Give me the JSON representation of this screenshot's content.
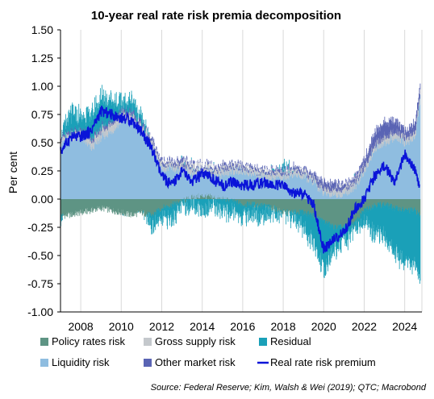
{
  "chart_data": {
    "type": "area",
    "title": "10-year real rate risk premia decomposition",
    "ylabel": "Per cent",
    "xlabel": "",
    "ylim": [
      -1.0,
      1.5
    ],
    "xlim": [
      2007.0,
      2024.85
    ],
    "yticks": [
      "-1.00",
      "-0.75",
      "-0.50",
      "-0.25",
      "0.00",
      "0.25",
      "0.50",
      "0.75",
      "1.00",
      "1.25",
      "1.50"
    ],
    "xticks": [
      "2008",
      "2010",
      "2012",
      "2014",
      "2016",
      "2018",
      "2020",
      "2022",
      "2024"
    ],
    "grid": "vertical",
    "legend_position": "bottom",
    "source": "Source: Federal Reserve; Kim, Walsh & Wei (2019); QTC; Macrobond",
    "colors": {
      "policy": "#5e9484",
      "gross_supply": "#c4c8cc",
      "residual": "#1aa0b8",
      "liquidity": "#8fbde0",
      "other_market": "#5a64b4",
      "real_rate": "#0a14d8"
    },
    "x": [
      2007.0,
      2007.5,
      2008.0,
      2008.5,
      2009.0,
      2009.5,
      2010.0,
      2010.5,
      2011.0,
      2011.5,
      2012.0,
      2012.5,
      2013.0,
      2013.5,
      2014.0,
      2014.5,
      2015.0,
      2015.5,
      2016.0,
      2016.5,
      2017.0,
      2017.5,
      2018.0,
      2018.5,
      2019.0,
      2019.5,
      2020.0,
      2020.5,
      2021.0,
      2021.5,
      2022.0,
      2022.5,
      2023.0,
      2023.5,
      2024.0,
      2024.5,
      2024.75
    ],
    "series": [
      {
        "name": "Policy rates risk",
        "values": [
          -0.15,
          -0.14,
          -0.12,
          -0.1,
          -0.08,
          -0.1,
          -0.12,
          -0.14,
          -0.12,
          -0.15,
          -0.08,
          -0.05,
          -0.02,
          0.02,
          0.03,
          0.02,
          0.0,
          -0.02,
          -0.05,
          -0.05,
          -0.06,
          -0.08,
          -0.12,
          -0.12,
          -0.12,
          -0.15,
          -0.2,
          -0.25,
          -0.25,
          -0.22,
          -0.1,
          -0.05,
          -0.05,
          -0.08,
          -0.1,
          -0.1,
          -0.15
        ]
      },
      {
        "name": "Gross supply risk",
        "values": [
          0.04,
          0.04,
          0.05,
          0.06,
          0.07,
          0.07,
          0.06,
          0.05,
          0.05,
          0.05,
          0.04,
          0.04,
          0.05,
          0.05,
          0.04,
          0.04,
          0.04,
          0.04,
          0.03,
          0.04,
          0.04,
          0.04,
          0.04,
          0.04,
          0.04,
          0.03,
          0.04,
          0.05,
          0.05,
          0.05,
          0.04,
          0.04,
          0.05,
          0.05,
          0.05,
          0.05,
          0.05
        ]
      },
      {
        "name": "Residual",
        "values": [
          0.0,
          0.15,
          0.1,
          0.2,
          0.25,
          0.2,
          0.05,
          0.1,
          0.05,
          -0.1,
          -0.1,
          -0.12,
          -0.05,
          -0.05,
          -0.1,
          -0.05,
          -0.12,
          -0.1,
          -0.1,
          -0.08,
          -0.1,
          -0.05,
          0.0,
          -0.05,
          -0.15,
          -0.25,
          -0.45,
          -0.2,
          -0.15,
          -0.05,
          -0.1,
          -0.25,
          -0.3,
          -0.4,
          -0.45,
          -0.5,
          -0.6
        ]
      },
      {
        "name": "Liquidity risk",
        "values": [
          0.5,
          0.55,
          0.55,
          0.45,
          0.55,
          0.6,
          0.7,
          0.7,
          0.6,
          0.45,
          0.28,
          0.27,
          0.25,
          0.22,
          0.2,
          0.2,
          0.22,
          0.25,
          0.25,
          0.22,
          0.2,
          0.2,
          0.2,
          0.22,
          0.2,
          0.15,
          0.05,
          0.05,
          0.05,
          0.1,
          0.25,
          0.45,
          0.5,
          0.55,
          0.5,
          0.55,
          0.9
        ]
      },
      {
        "name": "Other market risk",
        "values": [
          0.02,
          0.02,
          0.03,
          0.03,
          0.03,
          0.03,
          0.03,
          0.03,
          0.03,
          0.02,
          0.02,
          0.02,
          0.03,
          0.02,
          0.02,
          0.02,
          0.02,
          0.02,
          0.02,
          0.02,
          0.02,
          0.02,
          0.02,
          0.02,
          0.02,
          0.03,
          0.05,
          0.05,
          0.03,
          0.03,
          0.05,
          0.1,
          0.12,
          0.1,
          0.05,
          0.08,
          0.05
        ]
      },
      {
        "name": "Real rate risk premium",
        "values": [
          0.42,
          0.55,
          0.55,
          0.6,
          0.78,
          0.75,
          0.72,
          0.7,
          0.6,
          0.45,
          0.2,
          0.12,
          0.25,
          0.15,
          0.22,
          0.18,
          0.12,
          0.15,
          0.12,
          0.13,
          0.15,
          0.12,
          0.12,
          0.05,
          0.05,
          -0.05,
          -0.45,
          -0.35,
          -0.3,
          -0.1,
          0.0,
          0.2,
          0.3,
          0.15,
          0.4,
          0.25,
          0.1
        ]
      }
    ]
  }
}
